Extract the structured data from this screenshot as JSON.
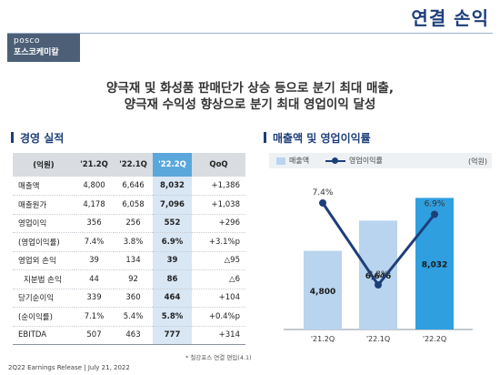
{
  "page": {
    "title": "연결 손익"
  },
  "logo": {
    "en": "posco",
    "ko": "포스코케미칼"
  },
  "headline": {
    "line1": "양극재 및 화성품 판매단가 상승 등으로 분기 최대 매출,",
    "line2": "양극재 수익성 향상으로 분기 최대 영업이익 달성"
  },
  "left_section": {
    "title": "경영 실적",
    "table": {
      "headers": [
        "(억원)",
        "'21.2Q",
        "'22.1Q",
        "'22.2Q",
        "QoQ"
      ],
      "rows": [
        {
          "label": "매출액",
          "v1": "4,800",
          "v2": "6,646",
          "v3": "8,032",
          "qoq": "+1,386"
        },
        {
          "label": "매출원가",
          "v1": "4,178",
          "v2": "6,058",
          "v3": "7,096",
          "qoq": "+1,038"
        },
        {
          "label": "영업이익",
          "v1": "356",
          "v2": "256",
          "v3": "552",
          "qoq": "+296"
        },
        {
          "label": "(영업이익률)",
          "v1": "7.4%",
          "v2": "3.8%",
          "v3": "6.9%",
          "qoq": "+3.1%p"
        },
        {
          "label": "영업외 손익",
          "v1": "39",
          "v2": "134",
          "v3": "39",
          "qoq": "△95"
        },
        {
          "label": "지분법 손익",
          "v1": "44",
          "v2": "92",
          "v3": "86",
          "qoq": "△6"
        },
        {
          "label": "당기순이익",
          "v1": "339",
          "v2": "360",
          "v3": "464",
          "qoq": "+104"
        },
        {
          "label": "(순이익률)",
          "v1": "7.1%",
          "v2": "5.4%",
          "v3": "5.8%",
          "qoq": "+0.4%p"
        },
        {
          "label": "EBITDA",
          "v1": "507",
          "v2": "463",
          "v3": "777",
          "qoq": "+314"
        }
      ]
    },
    "footnote": "* 철강포스 연결 편입(4.1)"
  },
  "footer": "2Q22 Earnings Release | July 21, 2022",
  "colors": {
    "accent": "#1d3f7a",
    "bar_light": "#b9d4ef",
    "bar_current": "#2f9fe0",
    "header_highlight": "#5aa7dc"
  },
  "chart_data": {
    "type": "bar",
    "title": "매출액 및 영업이익률",
    "unit": "(억원)",
    "categories": [
      "'21.2Q",
      "'22.1Q",
      "'22.2Q"
    ],
    "series": [
      {
        "name": "매출액",
        "type": "bar",
        "values": [
          4800,
          6646,
          8032
        ],
        "labels": [
          "4,800",
          "6,646",
          "8,032"
        ]
      },
      {
        "name": "영업이익률",
        "type": "line",
        "values": [
          7.4,
          3.8,
          6.9
        ],
        "labels": [
          "7.4%",
          "3.8%",
          "6.9%"
        ]
      }
    ],
    "legend": "top",
    "grid": false
  }
}
